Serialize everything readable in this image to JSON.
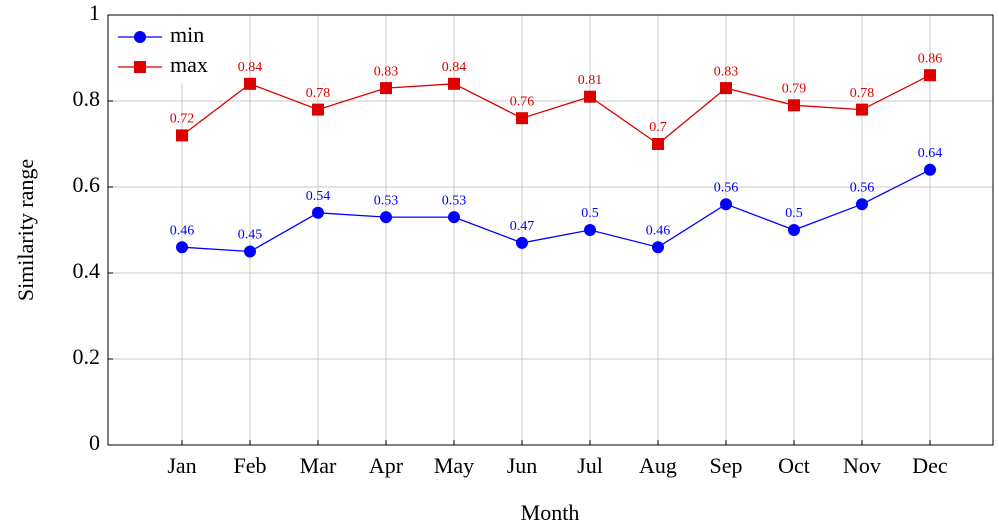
{
  "chart_data": {
    "type": "line",
    "x_label": "Month",
    "y_label": "Similarity range",
    "categories": [
      "Jan",
      "Feb",
      "Mar",
      "Apr",
      "May",
      "Jun",
      "Jul",
      "Aug",
      "Sep",
      "Oct",
      "Nov",
      "Dec"
    ],
    "series": [
      {
        "name": "min",
        "color": "#0000ff",
        "marker": "circle",
        "values": [
          0.46,
          0.45,
          0.54,
          0.53,
          0.53,
          0.47,
          0.5,
          0.46,
          0.56,
          0.5,
          0.56,
          0.64
        ]
      },
      {
        "name": "max",
        "color": "#dd0000",
        "marker": "square",
        "values": [
          0.72,
          0.84,
          0.78,
          0.83,
          0.84,
          0.76,
          0.81,
          0.7,
          0.83,
          0.79,
          0.78,
          0.86
        ]
      }
    ],
    "ylim": [
      0,
      1
    ],
    "yticks": [
      0,
      0.2,
      0.4,
      0.6,
      0.8,
      1
    ],
    "grid": true,
    "legend": "upper left"
  }
}
